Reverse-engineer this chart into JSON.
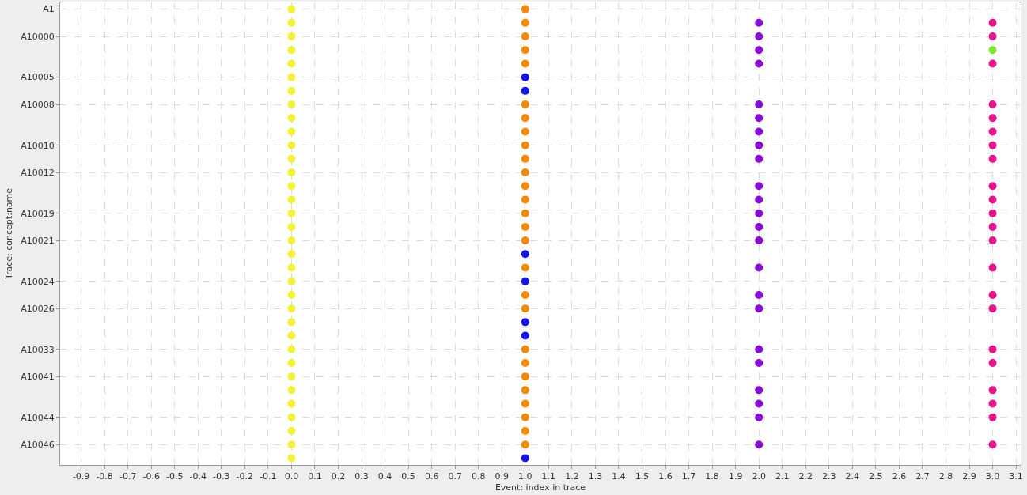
{
  "chart_data": {
    "type": "scatter",
    "orientation": "horizontal",
    "xlabel": "Event: index in trace",
    "ylabel": "Trace: concept:name",
    "categories": [
      "A1",
      null,
      "A10000",
      null,
      null,
      "A10005",
      null,
      "A10008",
      null,
      null,
      "A10010",
      null,
      "A10012",
      null,
      null,
      "A10019",
      null,
      "A10021",
      null,
      null,
      "A10024",
      null,
      "A10026",
      null,
      null,
      "A10033",
      null,
      "A10041",
      null,
      null,
      "A10044",
      null,
      "A10046",
      null
    ],
    "series": [
      {
        "color": "#f2f23c",
        "values": [
          0,
          0,
          0,
          0,
          0,
          0,
          0,
          0,
          0,
          0,
          0,
          0,
          0,
          0,
          0,
          0,
          0,
          0,
          0,
          0,
          0,
          0,
          0,
          0,
          0,
          0,
          0,
          0,
          0,
          0,
          0,
          0,
          0,
          0
        ]
      },
      {
        "color": "#f58a00",
        "values": [
          1,
          1,
          1,
          1,
          1,
          null,
          null,
          1,
          1,
          1,
          1,
          1,
          1,
          1,
          1,
          1,
          1,
          1,
          null,
          1,
          null,
          1,
          1,
          null,
          null,
          1,
          1,
          1,
          1,
          1,
          1,
          1,
          1,
          null
        ]
      },
      {
        "color": "#1414f0",
        "values": [
          null,
          null,
          null,
          null,
          null,
          1,
          1,
          null,
          null,
          null,
          null,
          null,
          null,
          null,
          null,
          null,
          null,
          null,
          1,
          null,
          1,
          null,
          null,
          1,
          1,
          null,
          null,
          null,
          null,
          null,
          null,
          null,
          null,
          1
        ]
      },
      {
        "color": "#8a0ad6",
        "values": [
          null,
          2,
          2,
          2,
          2,
          null,
          null,
          2,
          2,
          2,
          2,
          2,
          null,
          2,
          2,
          2,
          2,
          2,
          null,
          2,
          null,
          2,
          2,
          null,
          null,
          2,
          2,
          null,
          2,
          2,
          2,
          null,
          2,
          null
        ]
      },
      {
        "color": "#e6158c",
        "values": [
          null,
          3,
          3,
          null,
          3,
          null,
          null,
          3,
          3,
          3,
          3,
          3,
          null,
          3,
          3,
          3,
          3,
          3,
          null,
          3,
          null,
          3,
          3,
          null,
          null,
          3,
          3,
          null,
          3,
          3,
          3,
          null,
          3,
          null
        ]
      },
      {
        "color": "#7ee62a",
        "values": [
          null,
          null,
          null,
          3,
          null,
          null,
          null,
          null,
          null,
          null,
          null,
          null,
          null,
          null,
          null,
          null,
          null,
          null,
          null,
          null,
          null,
          null,
          null,
          null,
          null,
          null,
          null,
          null,
          null,
          null,
          null,
          null,
          null,
          null
        ]
      }
    ],
    "xlim": [
      -0.99,
      3.12
    ],
    "xticks": [
      {
        "value": -0.9,
        "label": "-0.9"
      },
      {
        "value": -0.8,
        "label": "-0.8"
      },
      {
        "value": -0.7,
        "label": "-0.7"
      },
      {
        "value": -0.6,
        "label": "-0.6"
      },
      {
        "value": -0.5,
        "label": "-0.5"
      },
      {
        "value": -0.4,
        "label": "-0.4"
      },
      {
        "value": -0.3,
        "label": "-0.3"
      },
      {
        "value": -0.2,
        "label": "-0.2"
      },
      {
        "value": -0.1,
        "label": "-0.1"
      },
      {
        "value": 0,
        "label": "0.0"
      },
      {
        "value": 0.1,
        "label": "0.1"
      },
      {
        "value": 0.2,
        "label": "0.2"
      },
      {
        "value": 0.3,
        "label": "0.3"
      },
      {
        "value": 0.4,
        "label": "0.4"
      },
      {
        "value": 0.5,
        "label": "0.5"
      },
      {
        "value": 0.6,
        "label": "0.6"
      },
      {
        "value": 0.7,
        "label": "0.7"
      },
      {
        "value": 0.8,
        "label": "0.8"
      },
      {
        "value": 0.9,
        "label": "0.9"
      },
      {
        "value": 1,
        "label": "1.0"
      },
      {
        "value": 1.1,
        "label": "1.1"
      },
      {
        "value": 1.2,
        "label": "1.2"
      },
      {
        "value": 1.3,
        "label": "1.3"
      },
      {
        "value": 1.4,
        "label": "1.4"
      },
      {
        "value": 1.5,
        "label": "1.5"
      },
      {
        "value": 1.6,
        "label": "1.6"
      },
      {
        "value": 1.7,
        "label": "1.7"
      },
      {
        "value": 1.8,
        "label": "1.8"
      },
      {
        "value": 1.9,
        "label": "1.9"
      },
      {
        "value": 2,
        "label": "2.0"
      },
      {
        "value": 2.1,
        "label": "2.1"
      },
      {
        "value": 2.2,
        "label": "2.2"
      },
      {
        "value": 2.3,
        "label": "2.3"
      },
      {
        "value": 2.4,
        "label": "2.4"
      },
      {
        "value": 2.5,
        "label": "2.5"
      },
      {
        "value": 2.6,
        "label": "2.6"
      },
      {
        "value": 2.7,
        "label": "2.7"
      },
      {
        "value": 2.8,
        "label": "2.8"
      },
      {
        "value": 2.9,
        "label": "2.9"
      },
      {
        "value": 3,
        "label": "3.0"
      },
      {
        "value": 3.1,
        "label": "3.1"
      }
    ],
    "grid": true,
    "marker": "circle"
  }
}
